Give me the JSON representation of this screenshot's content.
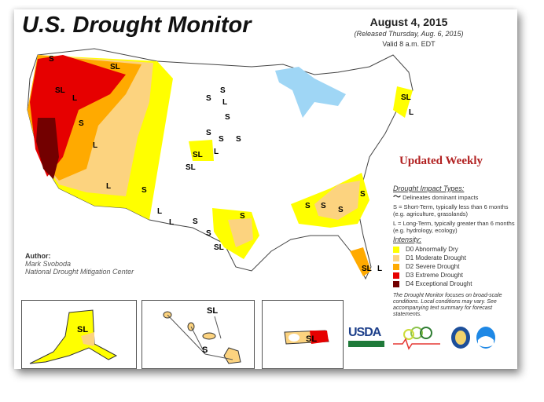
{
  "header": {
    "title": "U.S. Drought Monitor",
    "date": "August 4, 2015",
    "released": "(Released Thursday, Aug. 6, 2015)",
    "valid": "Valid 8 a.m. EDT"
  },
  "updated_label": "Updated Weekly",
  "legend": {
    "impact_title": "Drought Impact Types:",
    "delineates": "Delineates dominant impacts",
    "short_term": "S = Short-Term, typically less than 6 months (e.g. agriculture, grasslands)",
    "long_term": "L = Long-Term, typically greater than 6 months (e.g. hydrology, ecology)",
    "intensity_title": "Intensity:",
    "categories": [
      {
        "label": "D0 Abnormally Dry",
        "color": "#ffff00"
      },
      {
        "label": "D1 Moderate Drought",
        "color": "#fcd37f"
      },
      {
        "label": "D2 Severe Drought",
        "color": "#ffaa00"
      },
      {
        "label": "D3 Extreme Drought",
        "color": "#e60000"
      },
      {
        "label": "D4 Exceptional Drought",
        "color": "#730000"
      }
    ],
    "note": "The Drought Monitor focuses on broad-scale conditions. Local conditions may vary. See accompanying text summary for forecast statements."
  },
  "author": {
    "label": "Author:",
    "name": "Mark Svoboda",
    "org": "National Drought Mitigation Center"
  },
  "map": {
    "labels": [
      "S",
      "SL",
      "SL",
      "L",
      "S",
      "L",
      "L",
      "L",
      "S",
      "L",
      "S",
      "S",
      "S",
      "SL",
      "S",
      "S",
      "L",
      "S",
      "S",
      "S",
      "S",
      "SL",
      "S",
      "S",
      "SL",
      "L",
      "S",
      "S",
      "SL",
      "L",
      "SL",
      "L"
    ]
  },
  "insets": {
    "alaska_label": "SL",
    "hawaii_labels": [
      "SL",
      "S"
    ],
    "puerto_rico_label": "SL"
  },
  "logos": {
    "usda": "USDA"
  }
}
